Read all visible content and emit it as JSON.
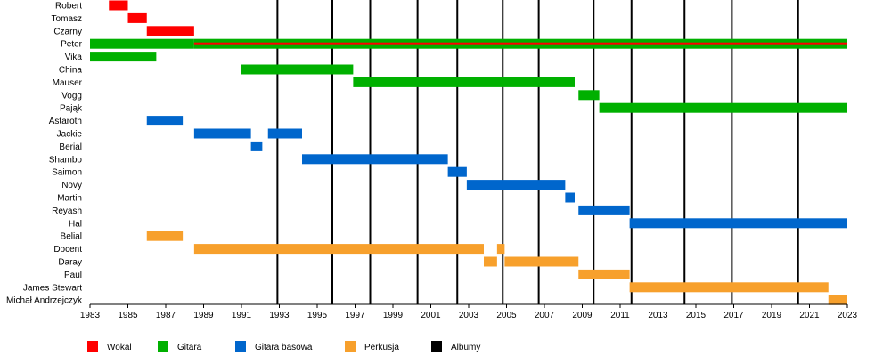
{
  "chart_data": {
    "type": "timeline",
    "title": "",
    "xlabel": "",
    "ylabel": "",
    "xlim": [
      1983,
      2023
    ],
    "grid": false,
    "x_ticks": [
      1983,
      1985,
      1987,
      1989,
      1991,
      1993,
      1995,
      1997,
      1999,
      2001,
      2003,
      2005,
      2007,
      2009,
      2011,
      2013,
      2015,
      2017,
      2019,
      2021,
      2023
    ],
    "album_years": [
      1992.9,
      1995.8,
      1997.8,
      2000.3,
      2002.4,
      2004.8,
      2006.7,
      2009.6,
      2011.6,
      2014.4,
      2016.9,
      2020.4
    ],
    "members": [
      {
        "name": "Robert",
        "bars": [
          {
            "role": "Wokal",
            "start": 1984.0,
            "end": 1985.0
          }
        ]
      },
      {
        "name": "Tomasz",
        "bars": [
          {
            "role": "Wokal",
            "start": 1985.0,
            "end": 1986.0
          }
        ]
      },
      {
        "name": "Czarny",
        "bars": [
          {
            "role": "Wokal",
            "start": 1986.0,
            "end": 1988.5
          }
        ]
      },
      {
        "name": "Peter",
        "bars": [
          {
            "role": "Gitara",
            "start": 1983.0,
            "end": 1988.5
          },
          {
            "role": "Gitara",
            "start": 1988.5,
            "end": 2023.0
          },
          {
            "role": "Wokal",
            "start": 1988.5,
            "end": 2023.0
          }
        ]
      },
      {
        "name": "Vika",
        "bars": [
          {
            "role": "Gitara",
            "start": 1983.0,
            "end": 1986.5
          }
        ]
      },
      {
        "name": "China",
        "bars": [
          {
            "role": "Gitara",
            "start": 1991.0,
            "end": 1996.9
          }
        ]
      },
      {
        "name": "Mauser",
        "bars": [
          {
            "role": "Gitara",
            "start": 1996.9,
            "end": 2008.6
          }
        ]
      },
      {
        "name": "Vogg",
        "bars": [
          {
            "role": "Gitara",
            "start": 2008.8,
            "end": 2009.9
          }
        ]
      },
      {
        "name": "Pająk",
        "bars": [
          {
            "role": "Gitara",
            "start": 2009.9,
            "end": 2023.0
          }
        ]
      },
      {
        "name": "Astaroth",
        "bars": [
          {
            "role": "Gitara basowa",
            "start": 1986.0,
            "end": 1987.9
          }
        ]
      },
      {
        "name": "Jackie",
        "bars": [
          {
            "role": "Gitara basowa",
            "start": 1988.5,
            "end": 1991.5
          },
          {
            "role": "Gitara basowa",
            "start": 1992.4,
            "end": 1994.2
          }
        ]
      },
      {
        "name": "Berial",
        "bars": [
          {
            "role": "Gitara basowa",
            "start": 1991.5,
            "end": 1992.1
          }
        ]
      },
      {
        "name": "Shambo",
        "bars": [
          {
            "role": "Gitara basowa",
            "start": 1994.2,
            "end": 2001.9
          }
        ]
      },
      {
        "name": "Saimon",
        "bars": [
          {
            "role": "Gitara basowa",
            "start": 2001.9,
            "end": 2002.9
          }
        ]
      },
      {
        "name": "Novy",
        "bars": [
          {
            "role": "Gitara basowa",
            "start": 2002.9,
            "end": 2008.1
          }
        ]
      },
      {
        "name": "Martin",
        "bars": [
          {
            "role": "Gitara basowa",
            "start": 2008.1,
            "end": 2008.6
          }
        ]
      },
      {
        "name": "Reyash",
        "bars": [
          {
            "role": "Gitara basowa",
            "start": 2008.8,
            "end": 2011.5
          }
        ]
      },
      {
        "name": "Hal",
        "bars": [
          {
            "role": "Gitara basowa",
            "start": 2011.5,
            "end": 2023.0
          }
        ]
      },
      {
        "name": "Belial",
        "bars": [
          {
            "role": "Perkusja",
            "start": 1986.0,
            "end": 1987.9
          }
        ]
      },
      {
        "name": "Docent",
        "bars": [
          {
            "role": "Perkusja",
            "start": 1988.5,
            "end": 2003.8
          },
          {
            "role": "Perkusja",
            "start": 2004.5,
            "end": 2004.9
          }
        ]
      },
      {
        "name": "Daray",
        "bars": [
          {
            "role": "Perkusja",
            "start": 2003.8,
            "end": 2004.5
          },
          {
            "role": "Perkusja",
            "start": 2004.9,
            "end": 2008.8
          }
        ]
      },
      {
        "name": "Paul",
        "bars": [
          {
            "role": "Perkusja",
            "start": 2008.8,
            "end": 2011.5
          }
        ]
      },
      {
        "name": "James Stewart",
        "bars": [
          {
            "role": "Perkusja",
            "start": 2011.5,
            "end": 2022.0
          }
        ]
      },
      {
        "name": "Michał Andrzejczyk",
        "bars": [
          {
            "role": "Perkusja",
            "start": 2022.0,
            "end": 2023.0
          }
        ]
      }
    ],
    "legend_placement": "bottom",
    "legend": [
      {
        "label": "Wokal",
        "color": "#ff0000"
      },
      {
        "label": "Gitara",
        "color": "#00b000"
      },
      {
        "label": "Gitara basowa",
        "color": "#0066cc"
      },
      {
        "label": "Perkusja",
        "color": "#f7a02c"
      },
      {
        "label": "Albumy",
        "color": "#000000"
      }
    ],
    "role_colors": {
      "Wokal": "#ff0000",
      "Gitara": "#00b000",
      "Gitara basowa": "#0066cc",
      "Perkusja": "#f7a02c"
    }
  }
}
